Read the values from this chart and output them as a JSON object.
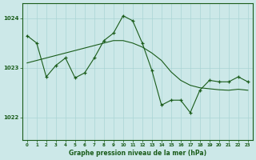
{
  "title": "Graphe pression niveau de la mer (hPa)",
  "bg_color": "#cce8e8",
  "grid_color": "#aad4d4",
  "line_color": "#1a5c1a",
  "ylim": [
    1021.55,
    1024.3
  ],
  "xlim": [
    -0.5,
    23.5
  ],
  "yticks": [
    1022,
    1023,
    1024
  ],
  "xticks": [
    0,
    1,
    2,
    3,
    4,
    5,
    6,
    7,
    8,
    9,
    10,
    11,
    12,
    13,
    14,
    15,
    16,
    17,
    18,
    19,
    20,
    21,
    22,
    23
  ],
  "main_series": [
    1023.65,
    1023.5,
    1022.82,
    1023.05,
    1023.2,
    1022.8,
    1022.9,
    1023.2,
    1023.55,
    1023.7,
    1024.05,
    1023.95,
    1023.5,
    1022.95,
    1022.25,
    1022.35,
    1022.35,
    1022.1,
    1022.55,
    1022.75,
    1022.72,
    1022.72,
    1022.82,
    1022.72
  ],
  "trend_series": [
    1023.1,
    1023.15,
    1023.2,
    1023.25,
    1023.3,
    1023.35,
    1023.4,
    1023.45,
    1023.5,
    1023.55,
    1023.55,
    1023.5,
    1023.42,
    1023.3,
    1023.15,
    1022.92,
    1022.75,
    1022.65,
    1022.6,
    1022.58,
    1022.56,
    1022.55,
    1022.57,
    1022.55
  ]
}
